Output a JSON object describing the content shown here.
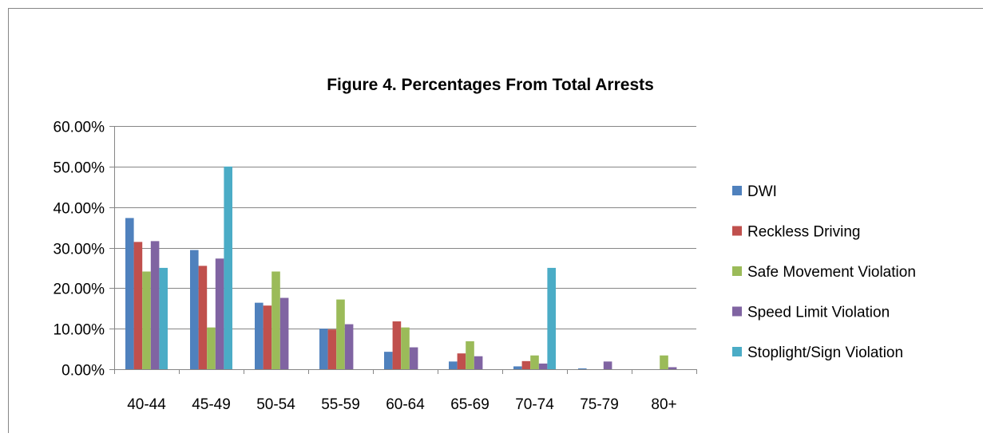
{
  "chart_data": {
    "type": "bar",
    "title": "Figure 4. Percentages From Total Arrests",
    "categories": [
      "40-44",
      "45-49",
      "50-54",
      "55-59",
      "60-64",
      "65-69",
      "70-74",
      "75-79",
      "80+"
    ],
    "yticks": [
      "60.00%",
      "50.00%",
      "40.00%",
      "30.00%",
      "20.00%",
      "10.00%",
      "0.00%"
    ],
    "ylim": [
      0,
      60
    ],
    "grid": true,
    "legend_position": "right",
    "series": [
      {
        "name": "DWI",
        "color": "#4F81BD",
        "values": [
          37.3,
          29.4,
          16.4,
          10.0,
          4.3,
          1.9,
          0.7,
          0.2,
          0.0
        ]
      },
      {
        "name": "Reckless Driving",
        "color": "#C0504D",
        "values": [
          31.4,
          25.5,
          15.7,
          9.8,
          11.8,
          3.9,
          2.0,
          0.0,
          0.0
        ]
      },
      {
        "name": "Safe Movement Violation",
        "color": "#9BBB59",
        "values": [
          24.1,
          10.3,
          24.1,
          17.2,
          10.3,
          6.9,
          3.4,
          0.0,
          3.4
        ]
      },
      {
        "name": "Speed Limit Violation",
        "color": "#8064A2",
        "values": [
          31.6,
          27.3,
          17.6,
          11.1,
          5.4,
          3.2,
          1.4,
          1.9,
          0.5
        ]
      },
      {
        "name": "Stoplight/Sign Violation",
        "color": "#4BACC6",
        "values": [
          25.0,
          50.0,
          0.0,
          0.0,
          0.0,
          0.0,
          25.0,
          0.0,
          0.0
        ]
      }
    ]
  }
}
